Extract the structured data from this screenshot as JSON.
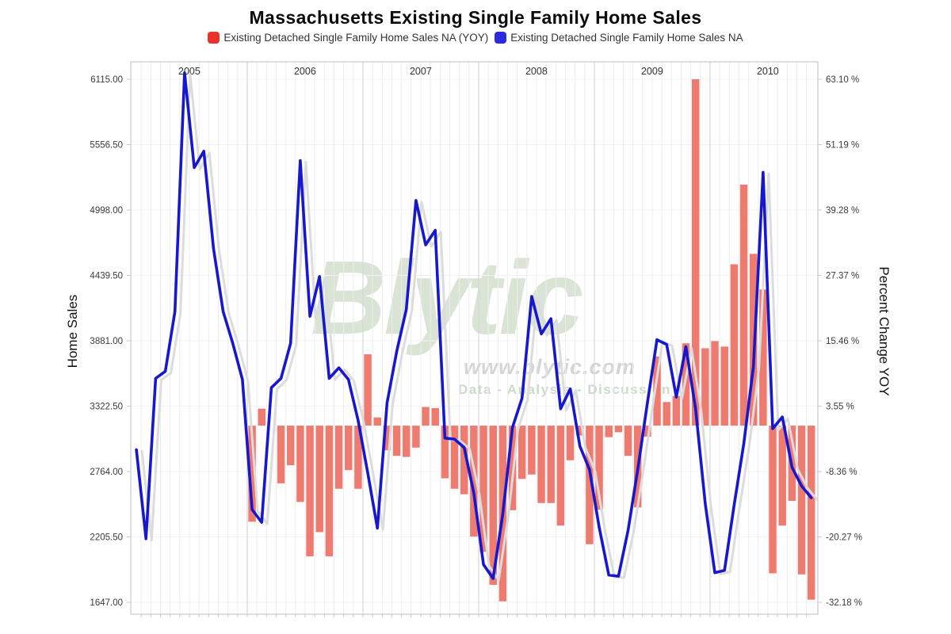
{
  "page": {
    "title": "Massachusetts Existing Single Family Home Sales"
  },
  "legend": [
    {
      "label": "Existing Detached Single Family Home Sales NA (YOY)",
      "color": "#e8342b"
    },
    {
      "label": "Existing Detached Single Family Home Sales NA",
      "color": "#2b2bdf"
    }
  ],
  "watermark": {
    "brand": "Blytic",
    "url": "www.blytic.com",
    "tagline": "Data - Analysis - Discussion"
  },
  "chart_data": {
    "type": "combo-bar-line",
    "title": "Massachusetts Existing Single Family Home Sales",
    "x_monthly": [
      "2005-01",
      "2005-02",
      "2005-03",
      "2005-04",
      "2005-05",
      "2005-06",
      "2005-07",
      "2005-08",
      "2005-09",
      "2005-10",
      "2005-11",
      "2005-12",
      "2006-01",
      "2006-02",
      "2006-03",
      "2006-04",
      "2006-05",
      "2006-06",
      "2006-07",
      "2006-08",
      "2006-09",
      "2006-10",
      "2006-11",
      "2006-12",
      "2007-01",
      "2007-02",
      "2007-03",
      "2007-04",
      "2007-05",
      "2007-06",
      "2007-07",
      "2007-08",
      "2007-09",
      "2007-10",
      "2007-11",
      "2007-12",
      "2008-01",
      "2008-02",
      "2008-03",
      "2008-04",
      "2008-05",
      "2008-06",
      "2008-07",
      "2008-08",
      "2008-09",
      "2008-10",
      "2008-11",
      "2008-12",
      "2009-01",
      "2009-02",
      "2009-03",
      "2009-04",
      "2009-05",
      "2009-06",
      "2009-07",
      "2009-08",
      "2009-09",
      "2009-10",
      "2009-11",
      "2009-12",
      "2010-01",
      "2010-02",
      "2010-03",
      "2010-04",
      "2010-05",
      "2010-06",
      "2010-07",
      "2010-08",
      "2010-09",
      "2010-10",
      "2010-11"
    ],
    "year_labels": [
      "2005",
      "2006",
      "2007",
      "2008",
      "2009",
      "2010"
    ],
    "left_axis": {
      "label": "Home Sales",
      "ticks": [
        6115.0,
        5556.5,
        4998.0,
        4439.5,
        3881.0,
        3322.5,
        2764.0,
        2205.5,
        1647.0
      ]
    },
    "right_axis": {
      "label": "Percent Change YOY",
      "tick_suffix": " %",
      "ticks": [
        63.1,
        51.19,
        39.28,
        27.37,
        15.46,
        3.55,
        -8.36,
        -20.27,
        -32.18
      ]
    },
    "series": [
      {
        "name": "Existing Detached Single Family Home Sales NA (YOY)",
        "type": "bar",
        "axis": "right",
        "color": "#ee7b70",
        "values": [
          null,
          null,
          null,
          null,
          null,
          null,
          null,
          null,
          null,
          null,
          null,
          null,
          -17.5,
          3.1,
          null,
          -10.5,
          -7.2,
          -13.9,
          -23.8,
          -19.4,
          -23.8,
          -11.5,
          -8.1,
          -11.5,
          13.0,
          1.5,
          -4.5,
          -5.5,
          -5.7,
          -4.0,
          3.4,
          3.2,
          -9.6,
          -11.5,
          -12.5,
          -20.2,
          -23.0,
          -29.0,
          -32.0,
          -15.4,
          -9.7,
          -8.9,
          -14.1,
          -14.1,
          -18.2,
          -6.3,
          -1.8,
          -21.6,
          -15.3,
          -2.1,
          -1.2,
          -5.5,
          -14.9,
          -2.0,
          12.6,
          4.3,
          5.4,
          15.0,
          63.1,
          14.1,
          15.4,
          14.4,
          29.4,
          43.9,
          31.3,
          24.8,
          -26.9,
          -18.2,
          -13.7,
          -27.1,
          -31.7
        ]
      },
      {
        "name": "Existing Detached Single Family Home Sales NA",
        "type": "line",
        "axis": "left",
        "color": "#1717cd",
        "values": [
          2950,
          2190,
          3560,
          3620,
          4130,
          6170,
          5360,
          5500,
          4670,
          4130,
          3860,
          3550,
          2440,
          2330,
          3480,
          3560,
          3860,
          5420,
          4090,
          4430,
          3560,
          3650,
          3550,
          3200,
          2750,
          2280,
          3350,
          3790,
          4150,
          5080,
          4700,
          4825,
          3050,
          3040,
          2970,
          2580,
          1970,
          1850,
          2400,
          3140,
          3390,
          4260,
          3940,
          4070,
          3300,
          3470,
          2980,
          2780,
          2290,
          1880,
          1870,
          2260,
          2780,
          3350,
          3890,
          3850,
          3400,
          3830,
          3300,
          2490,
          1900,
          1920,
          2480,
          3000,
          3660,
          5320,
          3130,
          3230,
          2800,
          2640,
          2540
        ]
      }
    ],
    "layout": {
      "grid": "monthly-vertical",
      "legend_position": "top",
      "left_range": [
        1647,
        6115
      ],
      "right_range": [
        -32.18,
        63.1
      ],
      "watermark": true
    }
  }
}
